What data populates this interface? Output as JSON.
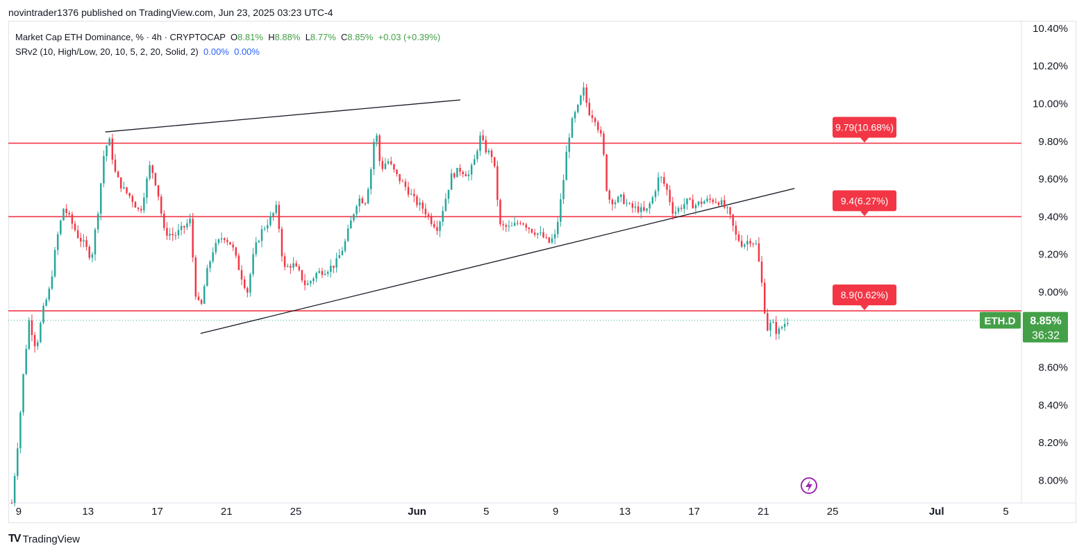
{
  "header": {
    "published_text": "novintrader1376 published on TradingView.com, Jun 23, 2025 03:23 UTC-4"
  },
  "legend": {
    "title": "Market Cap ETH Dominance, % · 4h · CRYPTOCAP",
    "o_label": "O",
    "o_value": "8.81%",
    "h_label": "H",
    "h_value": "8.88%",
    "l_label": "L",
    "l_value": "8.77%",
    "c_label": "C",
    "c_value": "8.85%",
    "change": "+0.03 (+0.39%)",
    "indicator": "SRv2 (10, High/Low, 20, 10, 5, 2, 20, Solid, 2)",
    "ind_value1": "0.00%",
    "ind_value2": "0.00%"
  },
  "footer": {
    "brand": "TradingView"
  },
  "colors": {
    "up": "#26a69a",
    "green": "#43a047",
    "down": "#f23645",
    "level": "#f23645",
    "grid": "#e0e3eb",
    "axis_text": "#131722",
    "trend": "#131722",
    "alert": "#9c27b0"
  },
  "chart_data": {
    "type": "candlestick",
    "symbol": "ETH.D",
    "current_price": "8.85%",
    "countdown": "36:32",
    "ylim": [
      7.88,
      10.44
    ],
    "y_ticks": [
      "10.40%",
      "10.20%",
      "10.00%",
      "9.80%",
      "9.60%",
      "9.40%",
      "9.20%",
      "9.00%",
      "8.80%",
      "8.60%",
      "8.40%",
      "8.20%",
      "8.00%"
    ],
    "y_tick_values": [
      10.4,
      10.2,
      10.0,
      9.8,
      9.6,
      9.4,
      9.2,
      9.0,
      8.8,
      8.6,
      8.4,
      8.2,
      8.0
    ],
    "x_ticks": [
      "9",
      "13",
      "17",
      "21",
      "25",
      "Jun",
      "5",
      "9",
      "13",
      "17",
      "21",
      "25",
      "Jul",
      "5"
    ],
    "x_tick_days": [
      8,
      12,
      16,
      20,
      24,
      31,
      35,
      39,
      43,
      47,
      51,
      55,
      61,
      65
    ],
    "xlim_days": [
      7.4,
      65.9
    ],
    "levels": [
      {
        "price": 9.79,
        "label": "9.79(10.68%)"
      },
      {
        "price": 9.4,
        "label": "9.4(6.27%)"
      },
      {
        "price": 8.9,
        "label": "8.9(0.62%)"
      }
    ],
    "trendlines": [
      {
        "from": [
          13.0,
          9.85
        ],
        "to": [
          33.5,
          10.02
        ]
      },
      {
        "from": [
          18.5,
          8.78
        ],
        "to": [
          52.8,
          9.55
        ]
      }
    ],
    "keypoints": [
      [
        7.6,
        7.88
      ],
      [
        8.0,
        8.25
      ],
      [
        8.3,
        8.6
      ],
      [
        8.6,
        8.85
      ],
      [
        9.0,
        8.7
      ],
      [
        9.4,
        8.9
      ],
      [
        9.8,
        9.02
      ],
      [
        10.2,
        9.28
      ],
      [
        10.6,
        9.45
      ],
      [
        11.0,
        9.38
      ],
      [
        11.4,
        9.3
      ],
      [
        11.8,
        9.25
      ],
      [
        12.2,
        9.18
      ],
      [
        12.6,
        9.45
      ],
      [
        12.9,
        9.72
      ],
      [
        13.2,
        9.82
      ],
      [
        13.6,
        9.62
      ],
      [
        14.0,
        9.55
      ],
      [
        14.5,
        9.5
      ],
      [
        15.0,
        9.42
      ],
      [
        15.6,
        9.68
      ],
      [
        16.0,
        9.55
      ],
      [
        16.4,
        9.32
      ],
      [
        17.0,
        9.3
      ],
      [
        17.5,
        9.34
      ],
      [
        17.9,
        9.38
      ],
      [
        18.2,
        9.0
      ],
      [
        18.5,
        8.9
      ],
      [
        18.8,
        9.08
      ],
      [
        19.2,
        9.22
      ],
      [
        19.8,
        9.3
      ],
      [
        20.3,
        9.25
      ],
      [
        20.8,
        9.1
      ],
      [
        21.2,
        9.0
      ],
      [
        21.6,
        9.22
      ],
      [
        22.0,
        9.32
      ],
      [
        22.6,
        9.4
      ],
      [
        22.9,
        9.45
      ],
      [
        23.3,
        9.12
      ],
      [
        23.8,
        9.15
      ],
      [
        24.2,
        9.1
      ],
      [
        24.6,
        9.03
      ],
      [
        25.2,
        9.1
      ],
      [
        25.8,
        9.12
      ],
      [
        26.3,
        9.15
      ],
      [
        26.8,
        9.25
      ],
      [
        27.2,
        9.38
      ],
      [
        27.6,
        9.5
      ],
      [
        28.0,
        9.48
      ],
      [
        28.3,
        9.62
      ],
      [
        28.6,
        9.88
      ],
      [
        28.9,
        9.65
      ],
      [
        29.3,
        9.7
      ],
      [
        29.8,
        9.62
      ],
      [
        30.4,
        9.55
      ],
      [
        30.9,
        9.48
      ],
      [
        31.4,
        9.44
      ],
      [
        31.8,
        9.38
      ],
      [
        32.2,
        9.34
      ],
      [
        32.6,
        9.48
      ],
      [
        33.0,
        9.62
      ],
      [
        33.5,
        9.65
      ],
      [
        34.0,
        9.62
      ],
      [
        34.4,
        9.72
      ],
      [
        34.6,
        9.83
      ],
      [
        35.0,
        9.75
      ],
      [
        35.4,
        9.72
      ],
      [
        35.8,
        9.35
      ],
      [
        36.4,
        9.34
      ],
      [
        37.0,
        9.38
      ],
      [
        37.6,
        9.33
      ],
      [
        38.2,
        9.3
      ],
      [
        38.6,
        9.26
      ],
      [
        39.0,
        9.3
      ],
      [
        39.4,
        9.55
      ],
      [
        39.7,
        9.8
      ],
      [
        40.0,
        9.92
      ],
      [
        40.3,
        9.98
      ],
      [
        40.6,
        10.08
      ],
      [
        40.9,
        9.96
      ],
      [
        41.3,
        9.92
      ],
      [
        41.7,
        9.8
      ],
      [
        42.0,
        9.5
      ],
      [
        42.4,
        9.48
      ],
      [
        42.8,
        9.5
      ],
      [
        43.3,
        9.45
      ],
      [
        43.8,
        9.44
      ],
      [
        44.2,
        9.42
      ],
      [
        44.6,
        9.5
      ],
      [
        45.0,
        9.62
      ],
      [
        45.4,
        9.55
      ],
      [
        45.8,
        9.42
      ],
      [
        46.2,
        9.45
      ],
      [
        46.6,
        9.48
      ],
      [
        47.0,
        9.46
      ],
      [
        47.5,
        9.48
      ],
      [
        48.0,
        9.49
      ],
      [
        48.5,
        9.48
      ],
      [
        49.0,
        9.42
      ],
      [
        49.4,
        9.3
      ],
      [
        49.8,
        9.25
      ],
      [
        50.2,
        9.28
      ],
      [
        50.6,
        9.25
      ],
      [
        50.9,
        9.05
      ],
      [
        51.2,
        8.8
      ],
      [
        51.5,
        8.84
      ],
      [
        51.8,
        8.78
      ],
      [
        52.1,
        8.82
      ],
      [
        52.4,
        8.85
      ]
    ],
    "approx_candle_count": 270
  }
}
